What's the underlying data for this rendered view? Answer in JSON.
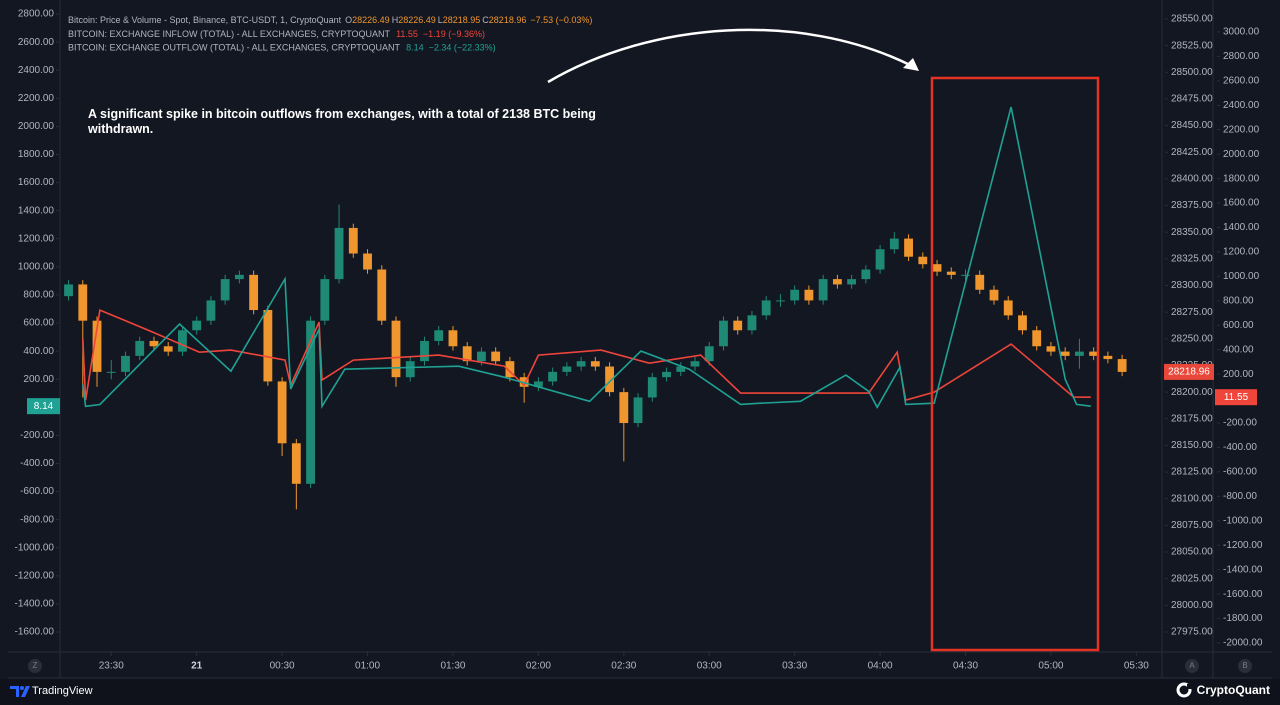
{
  "chart_data": {
    "type": "candlestick",
    "legend_title": "Bitcoin: Price & Volume - Spot, Binance, BTC-USDT, 1, CryptoQuant",
    "ohlc_readout": [
      [
        "O",
        "28226.49"
      ],
      [
        "H",
        "28226.49"
      ],
      [
        "L",
        "28218.95"
      ],
      [
        "C",
        "28218.96"
      ]
    ],
    "change": "−7.53 (−0.03%)",
    "annotation": "A significant spike in bitcoin outflows from exchanges, with a total of 2138 BTC being withdrawn.",
    "up_color": "#1e8a76",
    "down_color": "#f0962e",
    "x": [
      "23:15",
      "23:20",
      "23:25",
      "23:30",
      "23:35",
      "23:40",
      "23:45",
      "23:50",
      "23:55",
      "00:00",
      "00:05",
      "00:10",
      "00:15",
      "00:20",
      "00:25",
      "00:30",
      "00:35",
      "00:40",
      "00:45",
      "00:50",
      "00:55",
      "01:00",
      "01:05",
      "01:10",
      "01:15",
      "01:20",
      "01:25",
      "01:30",
      "01:35",
      "01:40",
      "01:45",
      "01:50",
      "01:55",
      "02:00",
      "02:05",
      "02:10",
      "02:15",
      "02:20",
      "02:25",
      "02:30",
      "02:35",
      "02:40",
      "02:45",
      "02:50",
      "02:55",
      "03:00",
      "03:05",
      "03:10",
      "03:15",
      "03:20",
      "03:25",
      "03:30",
      "03:35",
      "03:40",
      "03:45",
      "03:50",
      "03:55",
      "04:00",
      "04:05",
      "04:10",
      "04:15",
      "04:20",
      "04:25",
      "04:30",
      "04:35",
      "04:40",
      "04:45",
      "04:50",
      "04:55",
      "05:00",
      "05:05",
      "05:10",
      "05:15",
      "05:20",
      "05:25"
    ],
    "open": [
      28290,
      28301,
      28267,
      28219,
      28219,
      28234,
      28248,
      28243,
      28238,
      28258,
      28267,
      28286,
      28306,
      28310,
      28277,
      28210,
      28152,
      28114,
      28267,
      28306,
      28354,
      28330,
      28315,
      28267,
      28214,
      28229,
      28248,
      28258,
      28243,
      28229,
      28238,
      28229,
      28214,
      28205,
      28210,
      28219,
      28224,
      28229,
      28224,
      28200,
      28171,
      28195,
      28214,
      28219,
      28224,
      28229,
      28243,
      28267,
      28258,
      28272,
      28286,
      28286,
      28296,
      28286,
      28306,
      28301,
      28306,
      28315,
      28334,
      28344,
      28327,
      28320,
      28313,
      28310,
      28310,
      28296,
      28286,
      28272,
      28258,
      28243,
      28238,
      28234,
      28238,
      28234,
      28231
    ],
    "high": [
      28305,
      28305,
      28271,
      28230,
      28238,
      28252,
      28252,
      28247,
      28262,
      28271,
      28290,
      28310,
      28314,
      28314,
      28281,
      28214,
      28156,
      28271,
      28310,
      28376,
      28358,
      28334,
      28319,
      28271,
      28233,
      28252,
      28262,
      28262,
      28247,
      28242,
      28242,
      28233,
      28218,
      28214,
      28223,
      28228,
      28233,
      28233,
      28228,
      28204,
      28199,
      28218,
      28223,
      28228,
      28233,
      28247,
      28271,
      28271,
      28276,
      28290,
      28292,
      28300,
      28300,
      28310,
      28310,
      28310,
      28319,
      28338,
      28350,
      28348,
      28331,
      28324,
      28317,
      28315,
      28314,
      28300,
      28290,
      28276,
      28262,
      28247,
      28242,
      28250,
      28242,
      28238,
      28235
    ],
    "low": [
      28286,
      28195,
      28205,
      28212,
      28215,
      28230,
      28239,
      28234,
      28234,
      28254,
      28263,
      28282,
      28302,
      28273,
      28206,
      28140,
      28090,
      28110,
      28263,
      28302,
      28326,
      28311,
      28263,
      28205,
      28210,
      28225,
      28244,
      28239,
      28225,
      28225,
      28225,
      28210,
      28190,
      28201,
      28206,
      28215,
      28220,
      28220,
      28196,
      28135,
      28167,
      28191,
      28210,
      28215,
      28220,
      28225,
      28239,
      28254,
      28254,
      28268,
      28280,
      28282,
      28282,
      28282,
      28297,
      28297,
      28302,
      28311,
      28330,
      28323,
      28316,
      28309,
      28306,
      28305,
      28292,
      28282,
      28268,
      28254,
      28239,
      28234,
      28230,
      28222,
      28230,
      28227,
      28215
    ],
    "close": [
      28301,
      28267,
      28219,
      28219,
      28234,
      28248,
      28243,
      28238,
      28258,
      28267,
      28286,
      28306,
      28310,
      28277,
      28210,
      28152,
      28114,
      28267,
      28306,
      28354,
      28330,
      28315,
      28267,
      28214,
      28229,
      28248,
      28258,
      28243,
      28229,
      28238,
      28229,
      28214,
      28205,
      28210,
      28219,
      28224,
      28229,
      28224,
      28200,
      28171,
      28195,
      28214,
      28219,
      28224,
      28229,
      28243,
      28267,
      28258,
      28272,
      28286,
      28286,
      28296,
      28286,
      28306,
      28301,
      28306,
      28315,
      28334,
      28344,
      28327,
      28320,
      28313,
      28310,
      28310,
      28296,
      28286,
      28272,
      28258,
      28243,
      28238,
      28234,
      28238,
      28234,
      28231,
      28218.96
    ],
    "series": [
      {
        "name": "BITCOIN: EXCHANGE INFLOW (TOTAL) - ALL EXCHANGES, CRYPTOQUANT",
        "change": "−1.19 (−9.36%)",
        "color": "#f0453a",
        "axis": "y2",
        "x": [
          "23:20",
          "23:21",
          "23:26",
          "23:43",
          "00:01",
          "00:12",
          "00:31",
          "00:33",
          "00:43",
          "00:44",
          "00:55",
          "01:25",
          "01:48",
          "01:55",
          "02:00",
          "02:22",
          "02:39",
          "02:57",
          "03:11",
          "03:56",
          "04:06",
          "04:09",
          "04:19",
          "04:46",
          "05:08",
          "05:14"
        ],
        "values": [
          495,
          -12,
          724,
          560,
          380,
          397,
          315,
          110,
          626,
          151,
          315,
          356,
          266,
          110,
          356,
          397,
          290,
          356,
          45,
          45,
          380,
          -12,
          53,
          446,
          12,
          11.55
        ]
      },
      {
        "name": "BITCOIN: EXCHANGE OUTFLOW (TOTAL) - ALL EXCHANGES, CRYPTOQUANT",
        "change": "−2.34 (−22.33%)",
        "color": "#1fa294",
        "axis": "y3",
        "x": [
          "23:20",
          "23:21",
          "23:26",
          "23:54",
          "00:12",
          "00:31",
          "00:33",
          "00:43",
          "00:44",
          "00:52",
          "01:32",
          "01:48",
          "02:18",
          "02:36",
          "02:53",
          "03:11",
          "03:18",
          "03:32",
          "03:48",
          "03:56",
          "03:59",
          "04:07",
          "04:09",
          "04:19",
          "04:46",
          "05:05",
          "05:09",
          "05:14"
        ],
        "values": [
          164,
          7,
          20,
          593,
          257,
          914,
          130,
          557,
          7,
          271,
          293,
          214,
          43,
          400,
          271,
          21,
          29,
          43,
          229,
          114,
          0,
          286,
          21,
          29,
          2138,
          200,
          21,
          8.14
        ]
      }
    ],
    "xlim": [
      "23:12",
      "05:39"
    ],
    "xticks": [
      "23:30",
      {
        "value": "00:00",
        "label": "21"
      },
      "00:30",
      "01:00",
      "01:30",
      "02:00",
      "02:30",
      "03:00",
      "03:30",
      "04:00",
      "04:30",
      "05:00",
      "05:30"
    ],
    "ylim": [
      27958.1,
      28567.8
    ],
    "yticks": [
      {
        "value": 28550,
        "label": "28550.00"
      },
      {
        "value": 28525,
        "label": "28525.00"
      },
      {
        "value": 28500,
        "label": "28500.00"
      },
      {
        "value": 28475,
        "label": "28475.00"
      },
      {
        "value": 28450,
        "label": "28450.00"
      },
      {
        "value": 28425,
        "label": "28425.00"
      },
      {
        "value": 28400,
        "label": "28400.00"
      },
      {
        "value": 28375,
        "label": "28375.00"
      },
      {
        "value": 28350,
        "label": "28350.00"
      },
      {
        "value": 28325,
        "label": "28325.00"
      },
      {
        "value": 28300,
        "label": "28300.00"
      },
      {
        "value": 28275,
        "label": "28275.00"
      },
      {
        "value": 28250,
        "label": "28250.00"
      },
      {
        "value": 28225,
        "label": "28225.00"
      },
      {
        "value": 28200,
        "label": "28200.00"
      },
      {
        "value": 28175,
        "label": "28175.00"
      },
      {
        "value": 28150,
        "label": "28150.00"
      },
      {
        "value": 28125,
        "label": "28125.00"
      },
      {
        "value": 28100,
        "label": "28100.00"
      },
      {
        "value": 28075,
        "label": "28075.00"
      },
      {
        "value": 28050,
        "label": "28050.00"
      },
      {
        "value": 28025,
        "label": "28025.00"
      },
      {
        "value": 28000,
        "label": "28000.00"
      },
      {
        "value": 27975,
        "label": "27975.00"
      }
    ],
    "y2lim": [
      -2057.3,
      3261.9
    ],
    "y2ticks": [
      {
        "value": 3000,
        "label": "3000.00"
      },
      {
        "value": 2800,
        "label": "2800.00"
      },
      {
        "value": 2600,
        "label": "2600.00"
      },
      {
        "value": 2400,
        "label": "2400.00"
      },
      {
        "value": 2200,
        "label": "2200.00"
      },
      {
        "value": 2000,
        "label": "2000.00"
      },
      {
        "value": 1800,
        "label": "1800.00"
      },
      {
        "value": 1600,
        "label": "1600.00"
      },
      {
        "value": 1400,
        "label": "1400.00"
      },
      {
        "value": 1200,
        "label": "1200.00"
      },
      {
        "value": 1000,
        "label": "1000.00"
      },
      {
        "value": 800,
        "label": "800.00"
      },
      {
        "value": 600,
        "label": "600.00"
      },
      {
        "value": 400,
        "label": "400.00"
      },
      {
        "value": 200,
        "label": "200.00"
      },
      {
        "value": 0,
        "label": "0.00"
      },
      {
        "value": -200,
        "label": "-200.00"
      },
      {
        "value": -400,
        "label": "-400.00"
      },
      {
        "value": -600,
        "label": "-600.00"
      },
      {
        "value": -800,
        "label": "-800.00"
      },
      {
        "value": -1000,
        "label": "-1000.00"
      },
      {
        "value": -1200,
        "label": "-1200.00"
      },
      {
        "value": -1400,
        "label": "-1400.00"
      },
      {
        "value": -1600,
        "label": "-1600.00"
      },
      {
        "value": -1800,
        "label": "-1800.00"
      },
      {
        "value": -2000,
        "label": "-2000.00"
      }
    ],
    "y3lim": [
      -1728,
      2900
    ],
    "y3ticks": [
      {
        "value": 2800,
        "label": "2800.00"
      },
      {
        "value": 2600,
        "label": "2600.00"
      },
      {
        "value": 2400,
        "label": "2400.00"
      },
      {
        "value": 2200,
        "label": "2200.00"
      },
      {
        "value": 2000,
        "label": "2000.00"
      },
      {
        "value": 1800,
        "label": "1800.00"
      },
      {
        "value": 1600,
        "label": "1600.00"
      },
      {
        "value": 1400,
        "label": "1400.00"
      },
      {
        "value": 1200,
        "label": "1200.00"
      },
      {
        "value": 1000,
        "label": "1000.00"
      },
      {
        "value": 800,
        "label": "800.00"
      },
      {
        "value": 600,
        "label": "600.00"
      },
      {
        "value": 400,
        "label": "400.00"
      },
      {
        "value": 200,
        "label": "200.00"
      },
      {
        "value": 0,
        "label": "0.00"
      },
      {
        "value": -200,
        "label": "-200.00"
      },
      {
        "value": -400,
        "label": "-400.00"
      },
      {
        "value": -600,
        "label": "-600.00"
      },
      {
        "value": -800,
        "label": "-800.00"
      },
      {
        "value": -1000,
        "label": "-1000.00"
      },
      {
        "value": -1200,
        "label": "-1200.00"
      },
      {
        "value": -1400,
        "label": "-1400.00"
      },
      {
        "value": -1600,
        "label": "-1600.00"
      }
    ]
  },
  "axis_buttons": [
    "Z",
    "A",
    "B"
  ],
  "footer": {
    "left": "TradingView",
    "right": "CryptoQuant"
  }
}
